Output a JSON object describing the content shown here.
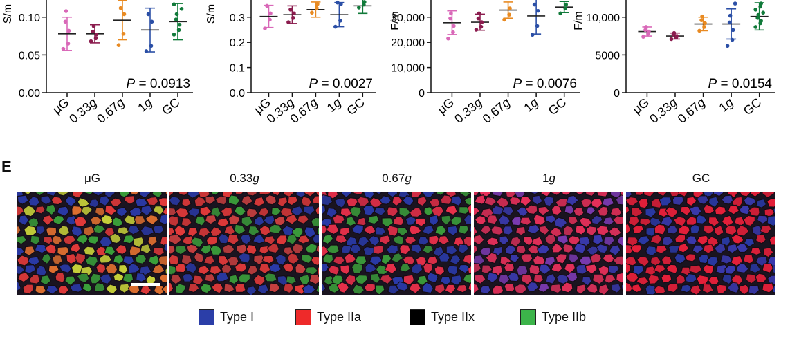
{
  "chart_data": [
    {
      "type": "scatter",
      "ylabel": "S/m",
      "yticks": [
        "0.00",
        "0.05",
        "0.10"
      ],
      "ylim": [
        0,
        0.13
      ],
      "categories": [
        "μG",
        "0.33g",
        "0.67g",
        "1g",
        "GC"
      ],
      "pvalue": {
        "label": "P",
        "value": "= 0.0913"
      },
      "series": [
        {
          "mean": 0.078,
          "sd": 0.022,
          "points": [
            0.058,
            0.065,
            0.082,
            0.094,
            0.108
          ]
        },
        {
          "mean": 0.078,
          "sd": 0.012,
          "points": [
            0.068,
            0.072,
            0.077,
            0.081,
            0.088
          ]
        },
        {
          "mean": 0.096,
          "sd": 0.026,
          "points": [
            0.063,
            0.078,
            0.104,
            0.112
          ]
        },
        {
          "mean": 0.083,
          "sd": 0.029,
          "points": [
            0.055,
            0.062,
            0.094,
            0.104
          ]
        },
        {
          "mean": 0.094,
          "sd": 0.024,
          "points": [
            0.077,
            0.083,
            0.09,
            0.097,
            0.104,
            0.111,
            0.117
          ]
        }
      ],
      "colors": [
        "#d968b8",
        "#8b1c4e",
        "#e88a22",
        "#2b4fa6",
        "#117a3a"
      ]
    },
    {
      "type": "scatter",
      "ylabel": "S/m",
      "yticks": [
        "0.0",
        "0.1",
        "0.2",
        "0.3"
      ],
      "ylim": [
        0,
        0.39
      ],
      "categories": [
        "μG",
        "0.33g",
        "0.67g",
        "1g",
        "GC"
      ],
      "pvalue": {
        "label": "P",
        "value": "= 0.0027"
      },
      "series": [
        {
          "mean": 0.303,
          "sd": 0.044,
          "points": [
            0.255,
            0.29,
            0.315,
            0.345
          ]
        },
        {
          "mean": 0.31,
          "sd": 0.035,
          "points": [
            0.28,
            0.297,
            0.315,
            0.33
          ]
        },
        {
          "mean": 0.33,
          "sd": 0.03,
          "points": [
            0.318,
            0.336,
            0.352
          ]
        },
        {
          "mean": 0.31,
          "sd": 0.048,
          "points": [
            0.262,
            0.286,
            0.352,
            0.358
          ]
        },
        {
          "mean": 0.345,
          "sd": 0.03,
          "points": [
            0.338,
            0.35,
            0.36
          ]
        }
      ],
      "colors": [
        "#d968b8",
        "#8b1c4e",
        "#e88a22",
        "#2b4fa6",
        "#117a3a"
      ]
    },
    {
      "type": "scatter",
      "ylabel": "F/m",
      "yticks": [
        "0",
        "10,000",
        "20,000",
        "30,000"
      ],
      "ylim": [
        0,
        39000
      ],
      "categories": [
        "μG",
        "0.33g",
        "0.67g",
        "1g",
        "GC"
      ],
      "pvalue": {
        "label": "P",
        "value": "= 0.0076"
      },
      "series": [
        {
          "mean": 27800,
          "sd": 4700,
          "points": [
            21500,
            24000,
            26500,
            29500,
            31500
          ]
        },
        {
          "mean": 28000,
          "sd": 3200,
          "points": [
            25000,
            26200,
            28000,
            29500,
            31500
          ]
        },
        {
          "mean": 32800,
          "sd": 3200,
          "points": [
            29000,
            31000,
            33500
          ]
        },
        {
          "mean": 30500,
          "sd": 7200,
          "points": [
            23000,
            26500,
            32500,
            35000
          ]
        },
        {
          "mean": 34000,
          "sd": 2200,
          "points": [
            31500,
            33500,
            35000
          ]
        }
      ],
      "colors": [
        "#d968b8",
        "#8b1c4e",
        "#e88a22",
        "#2b4fa6",
        "#117a3a"
      ]
    },
    {
      "type": "scatter",
      "ylabel": "F/m",
      "yticks": [
        "0",
        "5000",
        "10,000"
      ],
      "ylim": [
        0,
        13000
      ],
      "categories": [
        "μG",
        "0.33g",
        "0.67g",
        "1g",
        "GC"
      ],
      "pvalue": {
        "label": "P",
        "value": "= 0.0154"
      },
      "series": [
        {
          "mean": 8100,
          "sd": 600,
          "points": [
            7400,
            7800,
            8100,
            8300,
            8700
          ]
        },
        {
          "mean": 7500,
          "sd": 400,
          "points": [
            7100,
            7300,
            7500,
            7700,
            7900
          ]
        },
        {
          "mean": 9100,
          "sd": 900,
          "points": [
            8200,
            8700,
            9200,
            9600,
            10100
          ]
        },
        {
          "mean": 9100,
          "sd": 2000,
          "points": [
            6200,
            7000,
            8300,
            9300,
            10200,
            11800,
            12700
          ]
        },
        {
          "mean": 10100,
          "sd": 1800,
          "points": [
            8700,
            9200,
            9500,
            9900,
            10300,
            10600,
            11000,
            11400,
            11800
          ]
        }
      ],
      "colors": [
        "#d968b8",
        "#8b1c4e",
        "#e88a22",
        "#2b4fa6",
        "#117a3a"
      ]
    }
  ],
  "panel_e": {
    "letter": "E",
    "images": [
      {
        "title_pre": "μG",
        "title_italic": "",
        "palette": [
          "#2a3aa8",
          "#e23a3a",
          "#3aa03a",
          "#c8d23a",
          "#e07030"
        ]
      },
      {
        "title_pre": "0.33",
        "title_italic": "g",
        "palette": [
          "#2a3aa8",
          "#e23a3a",
          "#e23a3a",
          "#3a9a3a",
          "#c84040"
        ]
      },
      {
        "title_pre": "0.67",
        "title_italic": "g",
        "palette": [
          "#2a3aa8",
          "#e8304a",
          "#e8304a",
          "#3a9a3a",
          "#2a3aa8"
        ]
      },
      {
        "title_pre": "1",
        "title_italic": "g",
        "palette": [
          "#d8305a",
          "#e8305a",
          "#3a3ab0",
          "#e8305a",
          "#7a3ab0"
        ]
      },
      {
        "title_pre": "GC",
        "title_italic": "",
        "palette": [
          "#e8203a",
          "#2a3aa8",
          "#e8203a",
          "#e8203a",
          "#3a3ab0"
        ]
      }
    ],
    "legend": [
      {
        "label": "Type I",
        "color": "#2b3ea8"
      },
      {
        "label": "Type IIa",
        "color": "#ee2a2a"
      },
      {
        "label": "Type IIx",
        "color": "#000000"
      },
      {
        "label": "Type IIb",
        "color": "#3cb44a"
      }
    ]
  }
}
